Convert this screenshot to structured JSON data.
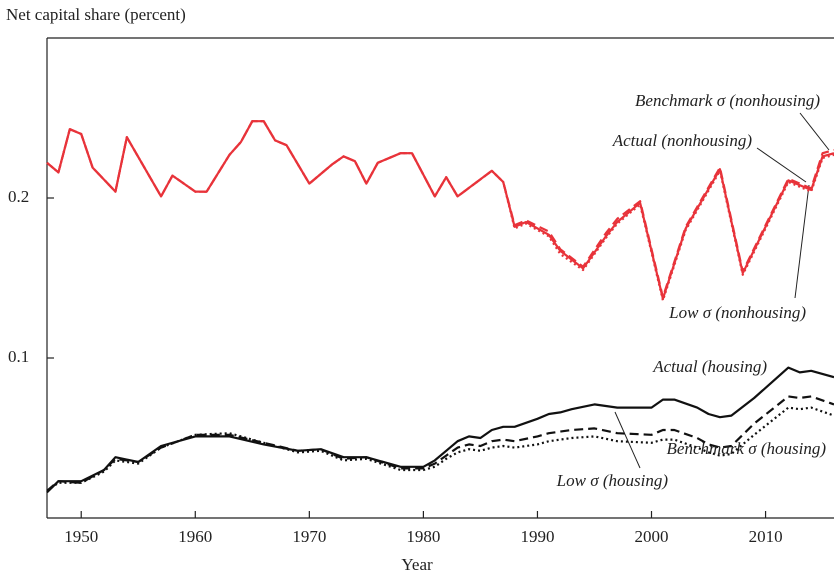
{
  "chart_data": {
    "type": "line",
    "y_label": "Net capital share (percent)",
    "x_label": "Year",
    "xlim": [
      1947,
      2016
    ],
    "xticks": [
      1950,
      1960,
      1970,
      1980,
      1990,
      2000,
      2010
    ],
    "ylim": [
      0,
      0.3
    ],
    "yticks": [
      0.1,
      0.2
    ],
    "grid": false,
    "series": [
      {
        "name": "Actual (nonhousing)",
        "color": "#e8333a",
        "dash": "solid",
        "x": [
          1947,
          1948,
          1949,
          1950,
          1951,
          1953,
          1954,
          1957,
          1958,
          1960,
          1961,
          1963,
          1964,
          1965,
          1966,
          1967,
          1968,
          1970,
          1972,
          1973,
          1974,
          1975,
          1976,
          1978,
          1979,
          1981,
          1982,
          1983,
          1986,
          1987,
          1988,
          1989,
          1991,
          1992,
          1994,
          1996,
          1997,
          1999,
          2001,
          2003,
          2006,
          2008,
          2012,
          2014,
          2015,
          2016
        ],
        "values": [
          0.222,
          0.216,
          0.243,
          0.24,
          0.219,
          0.204,
          0.238,
          0.201,
          0.214,
          0.204,
          0.204,
          0.227,
          0.235,
          0.248,
          0.248,
          0.236,
          0.233,
          0.209,
          0.221,
          0.226,
          0.223,
          0.209,
          0.222,
          0.228,
          0.228,
          0.201,
          0.213,
          0.201,
          0.217,
          0.21,
          0.182,
          0.185,
          0.177,
          0.167,
          0.156,
          0.176,
          0.185,
          0.197,
          0.137,
          0.181,
          0.218,
          0.153,
          0.211,
          0.205,
          0.226,
          0.228
        ]
      },
      {
        "name": "Benchmark σ (nonhousing)",
        "color": "#e8333a",
        "dash": "dashed",
        "x": [
          1947,
          1948,
          1949,
          1950,
          1951,
          1953,
          1954,
          1957,
          1958,
          1960,
          1961,
          1963,
          1964,
          1965,
          1966,
          1967,
          1968,
          1970,
          1972,
          1973,
          1974,
          1975,
          1976,
          1978,
          1979,
          1981,
          1982,
          1983,
          1986,
          1987,
          1988,
          1989,
          1991,
          1992,
          1994,
          1996,
          1997,
          1999,
          2001,
          2003,
          2006,
          2008,
          2012,
          2014,
          2015,
          2016
        ],
        "values": [
          0.222,
          0.216,
          0.243,
          0.24,
          0.219,
          0.204,
          0.238,
          0.201,
          0.214,
          0.204,
          0.204,
          0.227,
          0.235,
          0.248,
          0.248,
          0.236,
          0.233,
          0.209,
          0.221,
          0.226,
          0.223,
          0.209,
          0.222,
          0.228,
          0.228,
          0.201,
          0.213,
          0.201,
          0.217,
          0.21,
          0.183,
          0.186,
          0.179,
          0.168,
          0.157,
          0.178,
          0.187,
          0.198,
          0.138,
          0.182,
          0.219,
          0.154,
          0.212,
          0.206,
          0.228,
          0.23
        ]
      },
      {
        "name": "Low σ (nonhousing)",
        "color": "#e8333a",
        "dash": "dotted",
        "x": [
          1947,
          1948,
          1949,
          1950,
          1951,
          1953,
          1954,
          1957,
          1958,
          1960,
          1961,
          1963,
          1964,
          1965,
          1966,
          1967,
          1968,
          1970,
          1972,
          1973,
          1974,
          1975,
          1976,
          1978,
          1979,
          1981,
          1982,
          1983,
          1986,
          1987,
          1988,
          1989,
          1991,
          1992,
          1994,
          1996,
          1997,
          1999,
          2001,
          2003,
          2006,
          2008,
          2012,
          2014,
          2015,
          2016
        ],
        "values": [
          0.222,
          0.216,
          0.243,
          0.24,
          0.219,
          0.204,
          0.238,
          0.201,
          0.214,
          0.204,
          0.204,
          0.227,
          0.235,
          0.248,
          0.248,
          0.236,
          0.233,
          0.209,
          0.221,
          0.226,
          0.223,
          0.209,
          0.222,
          0.228,
          0.228,
          0.201,
          0.213,
          0.201,
          0.217,
          0.21,
          0.181,
          0.184,
          0.176,
          0.165,
          0.155,
          0.175,
          0.184,
          0.196,
          0.136,
          0.18,
          0.217,
          0.152,
          0.21,
          0.204,
          0.225,
          0.227
        ]
      },
      {
        "name": "Actual (housing)",
        "color": "#111111",
        "dash": "solid",
        "x": [
          1947,
          1948,
          1950,
          1952,
          1953,
          1955,
          1957,
          1960,
          1963,
          1966,
          1969,
          1971,
          1973,
          1975,
          1978,
          1980,
          1981,
          1982,
          1983,
          1984,
          1985,
          1986,
          1987,
          1988,
          1990,
          1991,
          1992,
          1993,
          1995,
          1997,
          2000,
          2001,
          2002,
          2004,
          2005,
          2006,
          2007,
          2009,
          2012,
          2013,
          2014,
          2016
        ],
        "values": [
          0.016,
          0.023,
          0.023,
          0.03,
          0.038,
          0.035,
          0.045,
          0.051,
          0.051,
          0.046,
          0.042,
          0.043,
          0.038,
          0.038,
          0.032,
          0.032,
          0.036,
          0.042,
          0.048,
          0.051,
          0.05,
          0.055,
          0.057,
          0.057,
          0.062,
          0.065,
          0.066,
          0.068,
          0.071,
          0.069,
          0.069,
          0.074,
          0.074,
          0.069,
          0.065,
          0.063,
          0.064,
          0.075,
          0.094,
          0.091,
          0.092,
          0.088
        ]
      },
      {
        "name": "Benchmark σ (housing)",
        "color": "#111111",
        "dash": "dashed",
        "x": [
          1947,
          1948,
          1950,
          1952,
          1953,
          1955,
          1957,
          1960,
          1963,
          1966,
          1969,
          1971,
          1973,
          1975,
          1978,
          1980,
          1981,
          1982,
          1983,
          1984,
          1985,
          1986,
          1987,
          1988,
          1990,
          1991,
          1992,
          1993,
          1995,
          1997,
          2000,
          2001,
          2002,
          2004,
          2005,
          2006,
          2007,
          2009,
          2012,
          2013,
          2014,
          2016
        ],
        "values": [
          0.017,
          0.023,
          0.022,
          0.03,
          0.037,
          0.035,
          0.044,
          0.052,
          0.052,
          0.047,
          0.042,
          0.043,
          0.037,
          0.038,
          0.031,
          0.031,
          0.034,
          0.039,
          0.044,
          0.046,
          0.045,
          0.048,
          0.049,
          0.048,
          0.051,
          0.053,
          0.054,
          0.055,
          0.056,
          0.053,
          0.052,
          0.055,
          0.055,
          0.05,
          0.046,
          0.044,
          0.045,
          0.059,
          0.076,
          0.075,
          0.076,
          0.071
        ]
      },
      {
        "name": "Low σ (housing)",
        "color": "#111111",
        "dash": "dotted",
        "x": [
          1947,
          1948,
          1950,
          1952,
          1953,
          1955,
          1957,
          1960,
          1963,
          1966,
          1969,
          1971,
          1973,
          1975,
          1978,
          1980,
          1981,
          1982,
          1983,
          1984,
          1985,
          1986,
          1987,
          1988,
          1990,
          1991,
          1992,
          1993,
          1995,
          1997,
          2000,
          2001,
          2002,
          2004,
          2005,
          2006,
          2007,
          2009,
          2012,
          2013,
          2014,
          2016
        ],
        "values": [
          0.017,
          0.022,
          0.022,
          0.029,
          0.036,
          0.034,
          0.044,
          0.052,
          0.053,
          0.047,
          0.041,
          0.042,
          0.036,
          0.037,
          0.03,
          0.03,
          0.032,
          0.037,
          0.041,
          0.043,
          0.042,
          0.044,
          0.045,
          0.044,
          0.046,
          0.048,
          0.049,
          0.05,
          0.051,
          0.048,
          0.047,
          0.049,
          0.049,
          0.044,
          0.041,
          0.039,
          0.04,
          0.052,
          0.069,
          0.068,
          0.069,
          0.064
        ]
      }
    ]
  }
}
